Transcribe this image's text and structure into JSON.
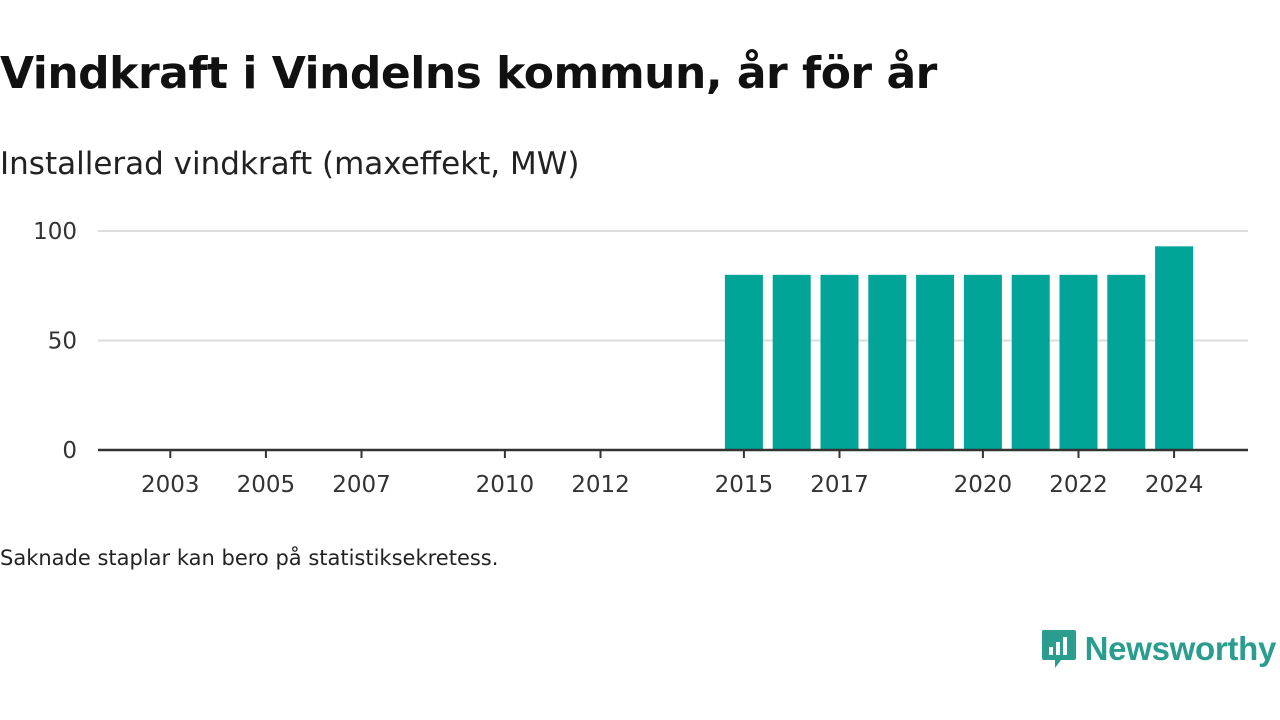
{
  "title": "Vindkraft i Vindelns kommun, år för år",
  "subtitle": "Installerad vindkraft (maxeffekt, MW)",
  "footnote": "Saknade staplar kan bero på statistiksekretess.",
  "brand": {
    "name": "Newsworthy",
    "icon": "newsworthy-logo-icon",
    "color": "#2a9d8f"
  },
  "colors": {
    "bar": "#00a598",
    "grid": "#dddddd",
    "axis": "#333333"
  },
  "chart_data": {
    "type": "bar",
    "title": "Vindkraft i Vindelns kommun, år för år",
    "ylabel": "Installerad vindkraft (maxeffekt, MW)",
    "xlabel": "",
    "categories": [
      "2002",
      "2003",
      "2004",
      "2005",
      "2006",
      "2007",
      "2008",
      "2009",
      "2010",
      "2011",
      "2012",
      "2013",
      "2014",
      "2015",
      "2016",
      "2017",
      "2018",
      "2019",
      "2020",
      "2021",
      "2022",
      "2023",
      "2024"
    ],
    "values": [
      null,
      null,
      null,
      null,
      null,
      null,
      null,
      null,
      null,
      null,
      null,
      null,
      null,
      80,
      80,
      80,
      80,
      80,
      80,
      80,
      80,
      80,
      93
    ],
    "x_tick_labels": [
      "2003",
      "2005",
      "2007",
      "2010",
      "2012",
      "2015",
      "2017",
      "2020",
      "2022",
      "2024"
    ],
    "y_ticks": [
      0,
      50,
      100
    ],
    "ylim": [
      0,
      100
    ],
    "grid": true,
    "legend": "none"
  }
}
